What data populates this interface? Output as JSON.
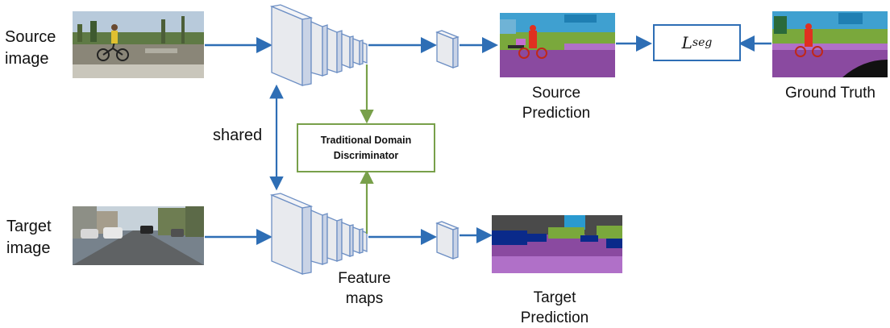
{
  "labels": {
    "source_image_line1": "Source",
    "source_image_line2": "image",
    "target_image_line1": "Target",
    "target_image_line2": "image",
    "shared": "shared",
    "feature_maps_line1": "Feature",
    "feature_maps_line2": "maps",
    "source_prediction_line1": "Source",
    "source_prediction_line2": "Prediction",
    "target_prediction_line1": "Target",
    "target_prediction_line2": "Prediction",
    "ground_truth": "Ground Truth",
    "discriminator_line1": "Traditional Domain",
    "discriminator_line2": "Discriminator",
    "loss_main": "L",
    "loss_sub": "seg"
  },
  "colors": {
    "arrow_blue": "#2e6eb5",
    "arrow_green": "#78a04a",
    "layer_face": "#e8eaee",
    "layer_edge": "#6d8fc4",
    "seg_road": "#8a4aa0",
    "seg_sky": "#2a9ad0",
    "seg_vegetation": "#7aa83c",
    "seg_building": "#4a4a4a",
    "seg_person": "#e03020",
    "seg_car": "#0a2a8a"
  }
}
